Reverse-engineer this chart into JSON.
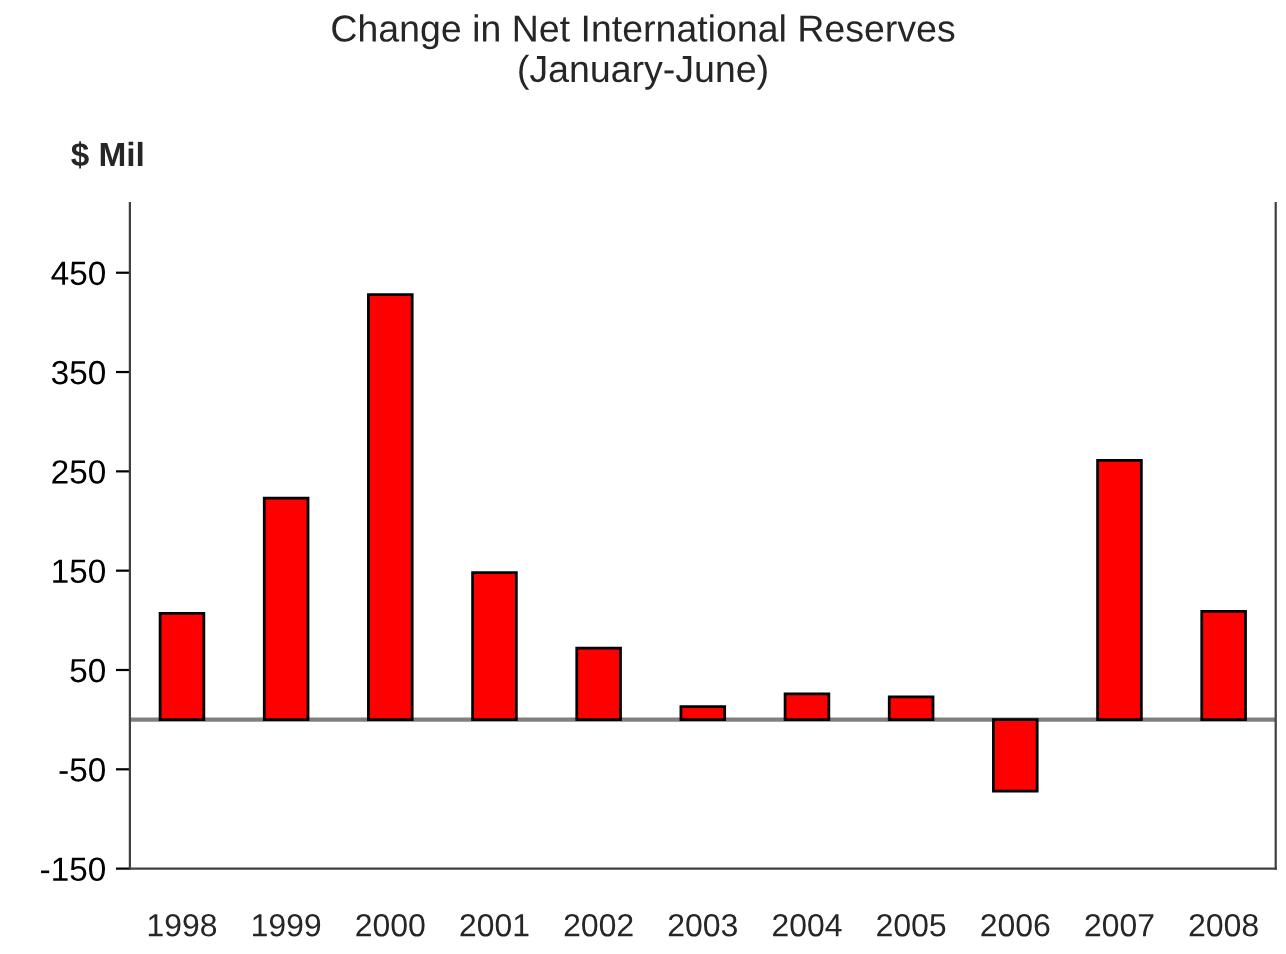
{
  "chart_data": {
    "type": "bar",
    "title": "Change in Net International Reserves\n(January-June)",
    "ylabel": "$ Mil",
    "categories": [
      "1998",
      "1999",
      "2000",
      "2001",
      "2002",
      "2003",
      "2004",
      "2005",
      "2006",
      "2007",
      "2008"
    ],
    "series": [
      {
        "color": "#ff0000",
        "values": [
          107,
          223,
          428,
          148,
          72,
          13,
          26,
          23,
          -72,
          261,
          109
        ]
      }
    ],
    "ylim": [
      -150,
      520
    ],
    "yticks": [
      -150,
      -50,
      50,
      150,
      250,
      350,
      450
    ],
    "ref_lines": [
      {
        "axis": "y",
        "value": 0,
        "color": "#808080"
      }
    ],
    "grid": false
  }
}
